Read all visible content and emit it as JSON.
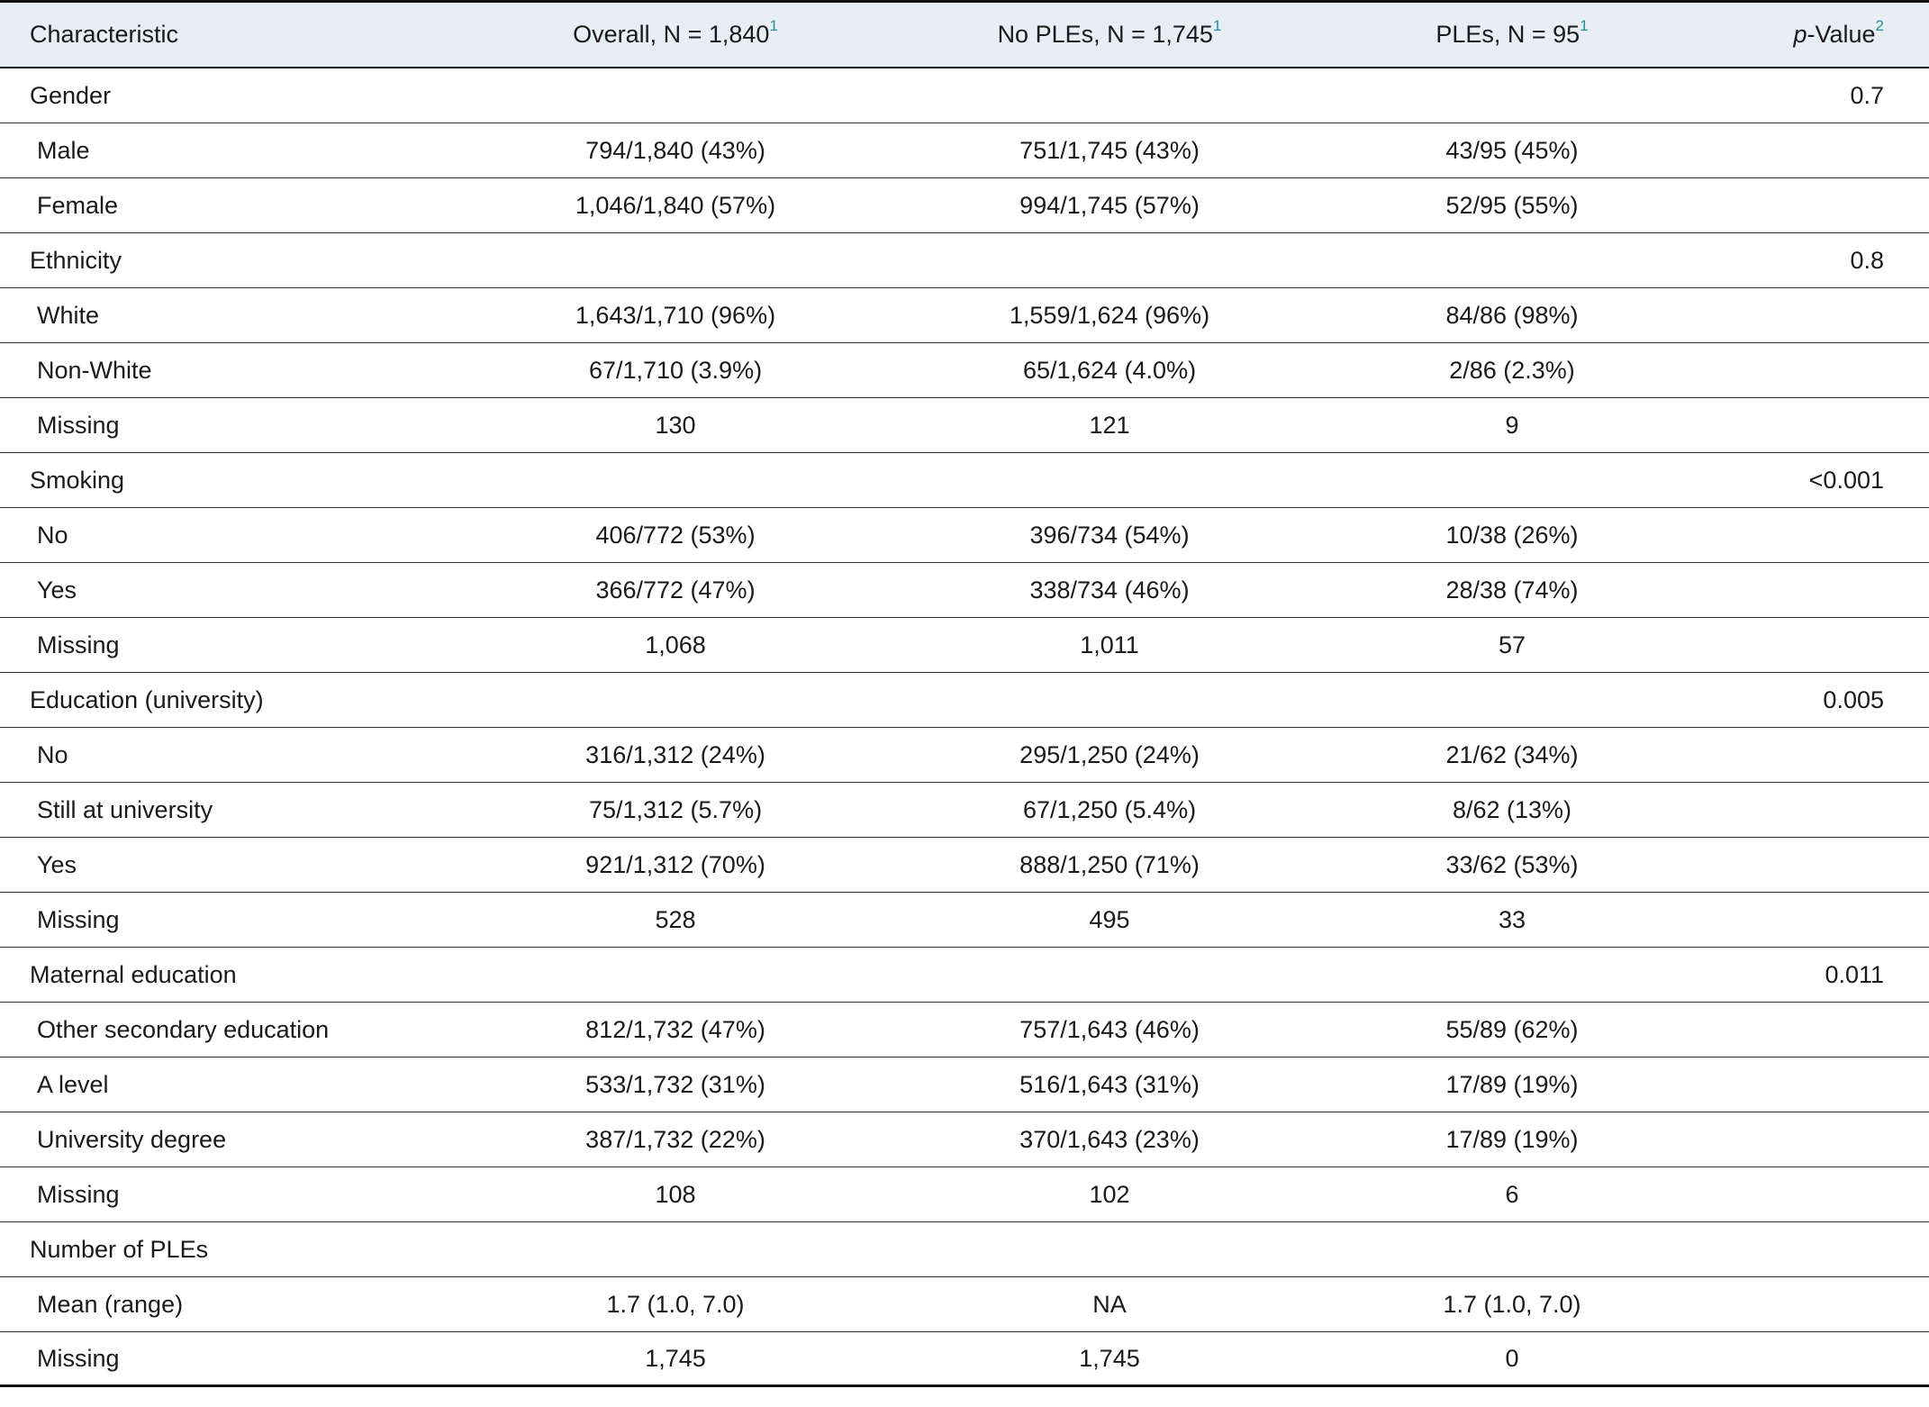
{
  "table": {
    "header": [
      {
        "text": "Characteristic"
      },
      {
        "text": "Overall, N = 1,840",
        "sup": "1"
      },
      {
        "text": "No PLEs, N = 1,745",
        "sup": "1"
      },
      {
        "text": "PLEs, N = 95",
        "sup": "1"
      },
      {
        "italic": "p",
        "text": "-Value",
        "sup": "2"
      }
    ],
    "sections": [
      {
        "label": "Gender",
        "p": "0.7",
        "rows": [
          [
            "Male",
            "794/1,840 (43%)",
            "751/1,745 (43%)",
            "43/95 (45%)"
          ],
          [
            "Female",
            "1,046/1,840 (57%)",
            "994/1,745 (57%)",
            "52/95 (55%)"
          ]
        ]
      },
      {
        "label": "Ethnicity",
        "p": "0.8",
        "rows": [
          [
            "White",
            "1,643/1,710 (96%)",
            "1,559/1,624 (96%)",
            "84/86 (98%)"
          ],
          [
            "Non-White",
            "67/1,710 (3.9%)",
            "65/1,624 (4.0%)",
            "2/86 (2.3%)"
          ],
          [
            "Missing",
            "130",
            "121",
            "9"
          ]
        ]
      },
      {
        "label": "Smoking",
        "p": "<0.001",
        "rows": [
          [
            "No",
            "406/772 (53%)",
            "396/734 (54%)",
            "10/38 (26%)"
          ],
          [
            "Yes",
            "366/772 (47%)",
            "338/734 (46%)",
            "28/38 (74%)"
          ],
          [
            "Missing",
            "1,068",
            "1,011",
            "57"
          ]
        ]
      },
      {
        "label": "Education (university)",
        "p": "0.005",
        "rows": [
          [
            "No",
            "316/1,312 (24%)",
            "295/1,250 (24%)",
            "21/62 (34%)"
          ],
          [
            "Still at university",
            "75/1,312 (5.7%)",
            "67/1,250 (5.4%)",
            "8/62 (13%)"
          ],
          [
            "Yes",
            "921/1,312 (70%)",
            "888/1,250 (71%)",
            "33/62 (53%)"
          ],
          [
            "Missing",
            "528",
            "495",
            "33"
          ]
        ]
      },
      {
        "label": "Maternal education",
        "p": "0.011",
        "rows": [
          [
            "Other secondary education",
            "812/1,732 (47%)",
            "757/1,643 (46%)",
            "55/89 (62%)"
          ],
          [
            "A level",
            "533/1,732 (31%)",
            "516/1,643 (31%)",
            "17/89 (19%)"
          ],
          [
            "University degree",
            "387/1,732 (22%)",
            "370/1,643 (23%)",
            "17/89 (19%)"
          ],
          [
            "Missing",
            "108",
            "102",
            "6"
          ]
        ]
      },
      {
        "label": "Number of PLEs",
        "rows": [
          [
            "Mean (range)",
            "1.7 (1.0, 7.0)",
            "NA",
            "1.7 (1.0, 7.0)"
          ],
          [
            "Missing",
            "1,745",
            "1,745",
            "0"
          ]
        ]
      }
    ]
  }
}
